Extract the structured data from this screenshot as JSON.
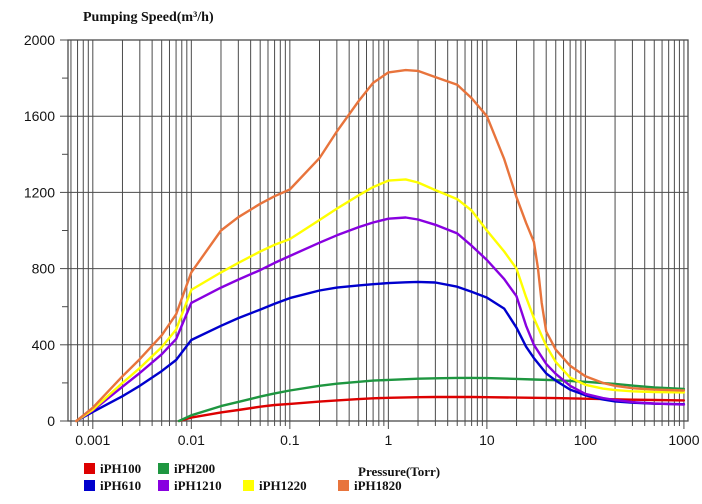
{
  "chart_data": {
    "type": "line",
    "title": "Pumping Speed(m³/h)",
    "xlabel": "Pressure(Torr)",
    "ylabel": "Pumping Speed(m³/h)",
    "x_scale": "log",
    "xlim": [
      0.00056,
      1100
    ],
    "ylim": [
      0,
      2000
    ],
    "x_ticks": [
      0.001,
      0.01,
      0.1,
      1,
      10,
      100,
      1000
    ],
    "x_tick_labels": [
      "0.001",
      "0.01",
      "0.1",
      "1",
      "10",
      "100",
      "1000"
    ],
    "y_ticks": [
      0,
      400,
      800,
      1200,
      1600,
      2000
    ],
    "y_minor_step": 200,
    "grid": "full vertical log grid (major + minor), horizontal lines at major y ticks only",
    "grid_color": "#4b4b4b",
    "legend_position": "bottom-left",
    "legend_rows": [
      [
        "iPH100",
        "iPH200"
      ],
      [
        "iPH610",
        "iPH1210",
        "iPH1220",
        "iPH1820"
      ]
    ],
    "series": [
      {
        "name": "iPH100",
        "color": "#dd0000",
        "points": [
          [
            0.0075,
            0
          ],
          [
            0.01,
            18
          ],
          [
            0.02,
            45
          ],
          [
            0.03,
            58
          ],
          [
            0.05,
            75
          ],
          [
            0.07,
            84
          ],
          [
            0.1,
            90
          ],
          [
            0.2,
            102
          ],
          [
            0.3,
            108
          ],
          [
            0.5,
            115
          ],
          [
            0.7,
            119
          ],
          [
            1,
            122
          ],
          [
            2,
            125
          ],
          [
            3,
            126
          ],
          [
            5,
            126
          ],
          [
            7,
            126
          ],
          [
            10,
            125
          ],
          [
            20,
            123
          ],
          [
            30,
            122
          ],
          [
            50,
            120
          ],
          [
            100,
            117
          ],
          [
            200,
            114
          ],
          [
            300,
            112
          ],
          [
            500,
            110
          ],
          [
            1000,
            108
          ]
        ]
      },
      {
        "name": "iPH200",
        "color": "#1e9640",
        "points": [
          [
            0.0075,
            0
          ],
          [
            0.01,
            30
          ],
          [
            0.02,
            78
          ],
          [
            0.03,
            100
          ],
          [
            0.05,
            128
          ],
          [
            0.07,
            145
          ],
          [
            0.1,
            160
          ],
          [
            0.2,
            185
          ],
          [
            0.3,
            196
          ],
          [
            0.5,
            206
          ],
          [
            0.7,
            212
          ],
          [
            1,
            216
          ],
          [
            2,
            222
          ],
          [
            3,
            224
          ],
          [
            5,
            226
          ],
          [
            7,
            226
          ],
          [
            10,
            225
          ],
          [
            20,
            221
          ],
          [
            30,
            218
          ],
          [
            50,
            214
          ],
          [
            100,
            206
          ],
          [
            200,
            195
          ],
          [
            300,
            186
          ],
          [
            500,
            176
          ],
          [
            1000,
            168
          ]
        ]
      },
      {
        "name": "iPH610",
        "color": "#0000cd",
        "points": [
          [
            0.00068,
            0
          ],
          [
            0.001,
            48
          ],
          [
            0.002,
            130
          ],
          [
            0.003,
            185
          ],
          [
            0.005,
            262
          ],
          [
            0.007,
            320
          ],
          [
            0.01,
            425
          ],
          [
            0.02,
            500
          ],
          [
            0.03,
            540
          ],
          [
            0.05,
            585
          ],
          [
            0.07,
            615
          ],
          [
            0.1,
            645
          ],
          [
            0.2,
            685
          ],
          [
            0.3,
            700
          ],
          [
            0.5,
            712
          ],
          [
            0.7,
            718
          ],
          [
            1,
            724
          ],
          [
            1.5,
            728
          ],
          [
            2,
            730
          ],
          [
            3,
            727
          ],
          [
            5,
            705
          ],
          [
            7,
            678
          ],
          [
            10,
            648
          ],
          [
            15,
            590
          ],
          [
            20,
            490
          ],
          [
            25,
            390
          ],
          [
            30,
            330
          ],
          [
            40,
            250
          ],
          [
            50,
            212
          ],
          [
            70,
            165
          ],
          [
            100,
            135
          ],
          [
            150,
            113
          ],
          [
            200,
            103
          ],
          [
            300,
            96
          ],
          [
            500,
            91
          ],
          [
            1000,
            88
          ]
        ]
      },
      {
        "name": "iPH1210",
        "color": "#8800e0",
        "points": [
          [
            0.00068,
            0
          ],
          [
            0.001,
            55
          ],
          [
            0.002,
            180
          ],
          [
            0.003,
            252
          ],
          [
            0.005,
            350
          ],
          [
            0.007,
            430
          ],
          [
            0.01,
            620
          ],
          [
            0.02,
            700
          ],
          [
            0.03,
            742
          ],
          [
            0.05,
            792
          ],
          [
            0.07,
            830
          ],
          [
            0.1,
            866
          ],
          [
            0.2,
            936
          ],
          [
            0.3,
            975
          ],
          [
            0.5,
            1018
          ],
          [
            0.7,
            1042
          ],
          [
            1,
            1062
          ],
          [
            1.5,
            1068
          ],
          [
            2,
            1058
          ],
          [
            3,
            1030
          ],
          [
            5,
            985
          ],
          [
            7,
            920
          ],
          [
            10,
            845
          ],
          [
            15,
            745
          ],
          [
            20,
            655
          ],
          [
            25,
            500
          ],
          [
            30,
            400
          ],
          [
            40,
            300
          ],
          [
            50,
            248
          ],
          [
            70,
            185
          ],
          [
            100,
            142
          ],
          [
            150,
            120
          ],
          [
            200,
            110
          ],
          [
            300,
            99
          ],
          [
            500,
            92
          ],
          [
            1000,
            86
          ]
        ]
      },
      {
        "name": "iPH1220",
        "color": "#ffff00",
        "points": [
          [
            0.00068,
            0
          ],
          [
            0.001,
            60
          ],
          [
            0.002,
            200
          ],
          [
            0.003,
            278
          ],
          [
            0.005,
            388
          ],
          [
            0.007,
            480
          ],
          [
            0.01,
            688
          ],
          [
            0.02,
            780
          ],
          [
            0.03,
            830
          ],
          [
            0.05,
            890
          ],
          [
            0.07,
            925
          ],
          [
            0.1,
            955
          ],
          [
            0.2,
            1055
          ],
          [
            0.3,
            1115
          ],
          [
            0.5,
            1185
          ],
          [
            0.7,
            1228
          ],
          [
            1,
            1262
          ],
          [
            1.5,
            1268
          ],
          [
            2,
            1252
          ],
          [
            3,
            1212
          ],
          [
            5,
            1165
          ],
          [
            7,
            1105
          ],
          [
            10,
            1000
          ],
          [
            15,
            890
          ],
          [
            20,
            800
          ],
          [
            25,
            650
          ],
          [
            30,
            540
          ],
          [
            40,
            395
          ],
          [
            50,
            310
          ],
          [
            70,
            228
          ],
          [
            100,
            190
          ],
          [
            150,
            170
          ],
          [
            200,
            162
          ],
          [
            300,
            156
          ],
          [
            500,
            152
          ],
          [
            1000,
            150
          ]
        ]
      },
      {
        "name": "iPH1820",
        "color": "#e8743c",
        "points": [
          [
            0.00068,
            0
          ],
          [
            0.001,
            70
          ],
          [
            0.002,
            235
          ],
          [
            0.003,
            325
          ],
          [
            0.005,
            450
          ],
          [
            0.007,
            560
          ],
          [
            0.01,
            780
          ],
          [
            0.02,
            1000
          ],
          [
            0.03,
            1070
          ],
          [
            0.05,
            1140
          ],
          [
            0.07,
            1180
          ],
          [
            0.1,
            1215
          ],
          [
            0.2,
            1380
          ],
          [
            0.3,
            1520
          ],
          [
            0.5,
            1680
          ],
          [
            0.7,
            1775
          ],
          [
            1,
            1830
          ],
          [
            1.5,
            1842
          ],
          [
            2,
            1838
          ],
          [
            3,
            1805
          ],
          [
            5,
            1765
          ],
          [
            7,
            1695
          ],
          [
            10,
            1600
          ],
          [
            15,
            1375
          ],
          [
            20,
            1175
          ],
          [
            25,
            1040
          ],
          [
            30,
            940
          ],
          [
            33,
            800
          ],
          [
            36,
            620
          ],
          [
            40,
            470
          ],
          [
            50,
            375
          ],
          [
            70,
            290
          ],
          [
            100,
            235
          ],
          [
            150,
            200
          ],
          [
            200,
            185
          ],
          [
            300,
            172
          ],
          [
            500,
            165
          ],
          [
            1000,
            160
          ]
        ]
      }
    ]
  }
}
